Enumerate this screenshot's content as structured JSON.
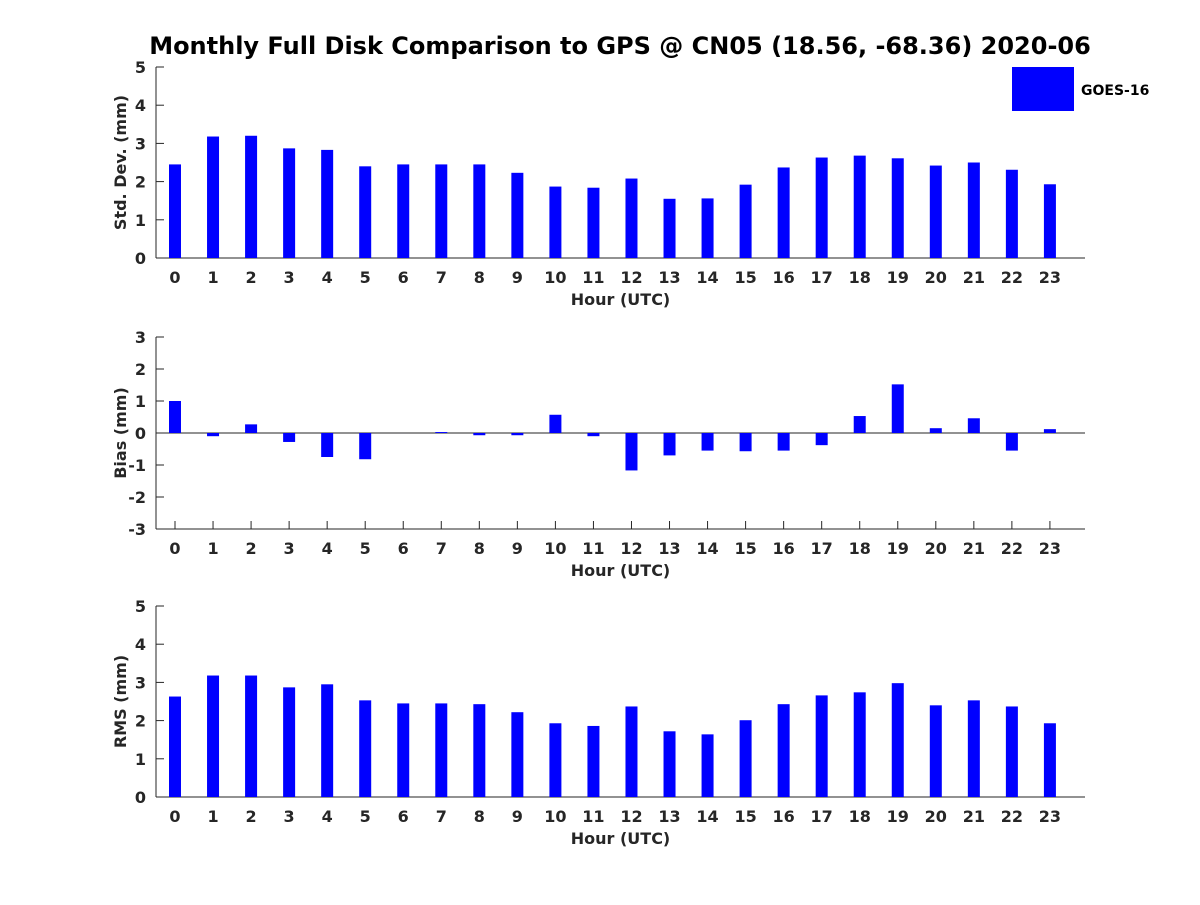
{
  "title": "Monthly Full Disk Comparison to GPS @ CN05 (18.56, -68.36) 2020-06",
  "legend": {
    "label": "GOES-16",
    "color": "#0000ff",
    "placement": "top-right"
  },
  "chart_data": [
    {
      "type": "bar",
      "name": "std-dev",
      "xlabel": "Hour (UTC)",
      "ylabel": "Std. Dev. (mm)",
      "categories": [
        "0",
        "1",
        "2",
        "3",
        "4",
        "5",
        "6",
        "7",
        "8",
        "9",
        "10",
        "11",
        "12",
        "13",
        "14",
        "15",
        "16",
        "17",
        "18",
        "19",
        "20",
        "21",
        "22",
        "23"
      ],
      "series": [
        {
          "name": "GOES-16",
          "values": [
            2.45,
            3.18,
            3.2,
            2.87,
            2.83,
            2.4,
            2.45,
            2.45,
            2.45,
            2.23,
            1.87,
            1.84,
            2.08,
            1.55,
            1.56,
            1.92,
            2.37,
            2.63,
            2.68,
            2.61,
            2.42,
            2.5,
            2.31,
            1.93
          ]
        }
      ],
      "ylim": [
        0,
        5
      ],
      "yticks": [
        "0",
        "1",
        "2",
        "3",
        "4",
        "5"
      ]
    },
    {
      "type": "bar",
      "name": "bias",
      "xlabel": "Hour (UTC)",
      "ylabel": "Bias (mm)",
      "categories": [
        "0",
        "1",
        "2",
        "3",
        "4",
        "5",
        "6",
        "7",
        "8",
        "9",
        "10",
        "11",
        "12",
        "13",
        "14",
        "15",
        "16",
        "17",
        "18",
        "19",
        "20",
        "21",
        "22",
        "23"
      ],
      "series": [
        {
          "name": "GOES-16",
          "values": [
            1.0,
            -0.1,
            0.27,
            -0.28,
            -0.75,
            -0.82,
            0.0,
            0.03,
            -0.07,
            -0.07,
            0.57,
            -0.1,
            -1.17,
            -0.7,
            -0.55,
            -0.57,
            -0.55,
            -0.38,
            0.53,
            1.52,
            0.15,
            0.46,
            -0.55,
            0.12
          ]
        }
      ],
      "ylim": [
        -3,
        3
      ],
      "yticks": [
        "-3",
        "-2",
        "-1",
        "0",
        "1",
        "2",
        "3"
      ]
    },
    {
      "type": "bar",
      "name": "rms",
      "xlabel": "Hour (UTC)",
      "ylabel": "RMS (mm)",
      "categories": [
        "0",
        "1",
        "2",
        "3",
        "4",
        "5",
        "6",
        "7",
        "8",
        "9",
        "10",
        "11",
        "12",
        "13",
        "14",
        "15",
        "16",
        "17",
        "18",
        "19",
        "20",
        "21",
        "22",
        "23"
      ],
      "series": [
        {
          "name": "GOES-16",
          "values": [
            2.63,
            3.18,
            3.18,
            2.87,
            2.95,
            2.53,
            2.45,
            2.45,
            2.43,
            2.22,
            1.93,
            1.86,
            2.37,
            1.72,
            1.64,
            2.01,
            2.43,
            2.66,
            2.74,
            2.98,
            2.4,
            2.53,
            2.37,
            1.93
          ]
        }
      ],
      "ylim": [
        0,
        5
      ],
      "yticks": [
        "0",
        "1",
        "2",
        "3",
        "4",
        "5"
      ]
    }
  ]
}
